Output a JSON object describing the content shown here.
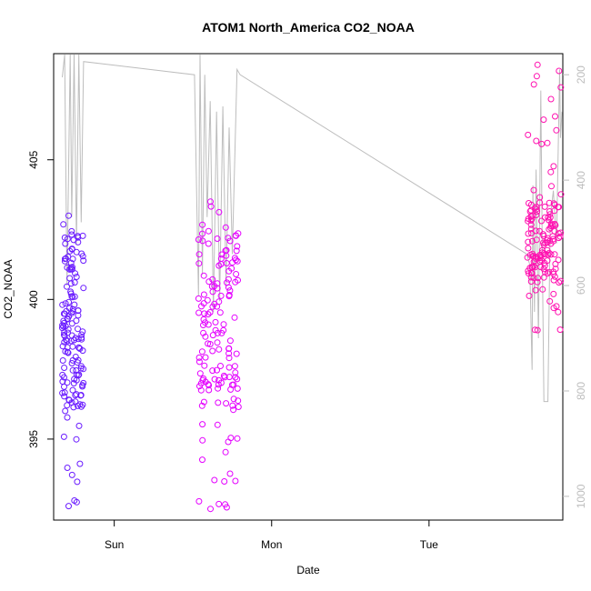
{
  "chart_data": {
    "type": "scatter",
    "title": "ATOM1 North_America CO2_NOAA",
    "xlabel": "Date",
    "ylabel": "CO2_NOAA",
    "x_unit": "days",
    "xlim": [
      -0.385,
      2.85
    ],
    "ylim": [
      392.1,
      408.8
    ],
    "x_ticks": [
      {
        "value": 0,
        "label": "Sun"
      },
      {
        "value": 1,
        "label": "Mon"
      },
      {
        "value": 2,
        "label": "Tue"
      }
    ],
    "y_ticks": [
      395,
      400,
      405
    ],
    "y2_axis": {
      "side": "right",
      "reversed": true,
      "ylim": [
        1045,
        160
      ],
      "ticks": [
        200,
        400,
        600,
        800,
        1000
      ],
      "color": "#bdbdbd"
    },
    "series": [
      {
        "color": "#6a1bff",
        "marker": "circle-open",
        "segments": [
          {
            "x": [
              -0.33,
              -0.195
            ],
            "y_min": 392.6,
            "y_max": 403.0,
            "y_core": [
              396,
              402.5
            ]
          }
        ]
      },
      {
        "color": "#e400ff",
        "marker": "circle-open",
        "segments": [
          {
            "x": [
              0.535,
              0.79
            ],
            "y_min": 392.5,
            "y_max": 403.5,
            "y_core": [
              396,
              402.5
            ]
          }
        ]
      },
      {
        "color": "#ff10b0",
        "marker": "circle-open",
        "segments": [
          {
            "x": [
              2.625,
              2.84
            ],
            "y_min": 398.9,
            "y_max": 408.4,
            "y_core": [
              400.6,
              403.5
            ]
          }
        ]
      }
    ],
    "overlay_line": {
      "color": "#bdbdbd",
      "axis": "y2",
      "points": [
        [
          -0.33,
          205
        ],
        [
          -0.315,
          120
        ],
        [
          -0.3,
          600
        ],
        [
          -0.28,
          160
        ],
        [
          -0.27,
          470
        ],
        [
          -0.255,
          160
        ],
        [
          -0.24,
          520
        ],
        [
          -0.225,
          160
        ],
        [
          -0.21,
          480
        ],
        [
          -0.195,
          175
        ],
        [
          0.51,
          200
        ],
        [
          0.535,
          620
        ],
        [
          0.545,
          160
        ],
        [
          0.56,
          580
        ],
        [
          0.575,
          200
        ],
        [
          0.59,
          470
        ],
        [
          0.61,
          250
        ],
        [
          0.63,
          650
        ],
        [
          0.65,
          270
        ],
        [
          0.67,
          630
        ],
        [
          0.69,
          260
        ],
        [
          0.71,
          600
        ],
        [
          0.73,
          300
        ],
        [
          0.75,
          540
        ],
        [
          0.78,
          190
        ],
        [
          0.8,
          200
        ],
        [
          2.62,
          540
        ],
        [
          2.64,
          560
        ],
        [
          2.655,
          760
        ],
        [
          2.66,
          410
        ],
        [
          2.67,
          650
        ],
        [
          2.68,
          380
        ],
        [
          2.695,
          700
        ],
        [
          2.71,
          230
        ],
        [
          2.72,
          550
        ],
        [
          2.73,
          820
        ],
        [
          2.755,
          820
        ],
        [
          2.77,
          470
        ],
        [
          2.79,
          420
        ],
        [
          2.81,
          520
        ],
        [
          2.83,
          190
        ],
        [
          2.835,
          320
        ],
        [
          2.845,
          270
        ]
      ]
    }
  }
}
